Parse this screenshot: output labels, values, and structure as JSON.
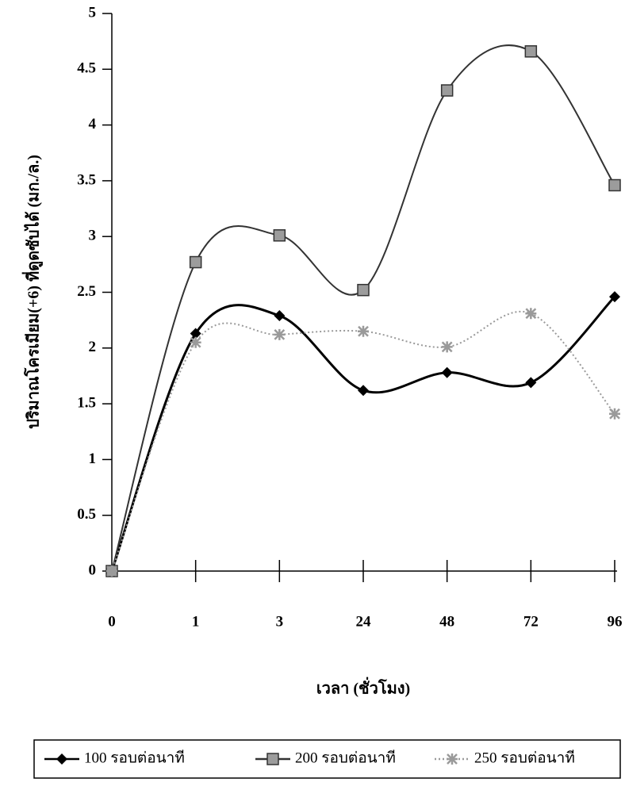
{
  "chart_data": {
    "type": "line",
    "y_label": "ปริมาณโครเมียม(+6) ที่ดูดซับได้ (มก./ล.)",
    "x_label": "เวลา (ชั่วโมง)",
    "categories": [
      "0",
      "1",
      "3",
      "24",
      "48",
      "72",
      "96"
    ],
    "series": [
      {
        "name": "100 รอบต่อนาที",
        "color": "#000000",
        "line_style": "solid",
        "marker": "diamond",
        "values": [
          0,
          2.13,
          2.29,
          1.62,
          1.78,
          1.69,
          2.46
        ]
      },
      {
        "name": "200 รอบต่อนาที",
        "color": "#333333",
        "line_style": "solid",
        "marker": "square",
        "values": [
          0,
          2.77,
          3.01,
          2.52,
          4.31,
          4.66,
          3.46
        ]
      },
      {
        "name": "250 รอบต่อนาที",
        "color": "#9a9a9a",
        "line_style": "dotted",
        "marker": "star",
        "values": [
          0,
          2.05,
          2.12,
          2.15,
          2.01,
          2.31,
          1.41
        ]
      }
    ],
    "ylim": [
      0,
      5
    ],
    "yticks": [
      0,
      0.5,
      1,
      1.5,
      2,
      2.5,
      3,
      3.5,
      4,
      4.5,
      5
    ],
    "legend": "bottom"
  }
}
